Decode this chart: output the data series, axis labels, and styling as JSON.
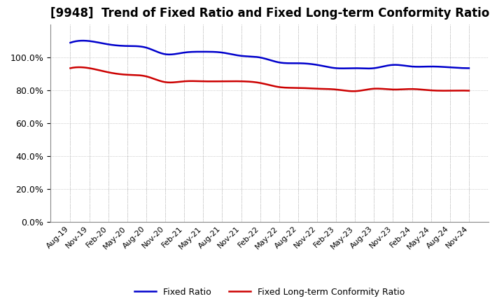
{
  "title": "[9948]  Trend of Fixed Ratio and Fixed Long-term Conformity Ratio",
  "x_labels": [
    "Aug-19",
    "Nov-19",
    "Feb-20",
    "May-20",
    "Aug-20",
    "Nov-20",
    "Feb-21",
    "May-21",
    "Aug-21",
    "Nov-21",
    "Feb-22",
    "May-22",
    "Aug-22",
    "Nov-22",
    "Feb-23",
    "May-23",
    "Aug-23",
    "Nov-23",
    "Feb-24",
    "May-24",
    "Aug-24",
    "Nov-24"
  ],
  "fixed_ratio": [
    1.09,
    1.1,
    1.08,
    1.07,
    1.06,
    1.02,
    1.03,
    1.035,
    1.03,
    1.01,
    1.0,
    0.97,
    0.965,
    0.955,
    0.935,
    0.935,
    0.935,
    0.955,
    0.945,
    0.945,
    0.94,
    0.935
  ],
  "fixed_lt_ratio": [
    0.935,
    0.935,
    0.91,
    0.895,
    0.885,
    0.85,
    0.855,
    0.855,
    0.855,
    0.855,
    0.845,
    0.82,
    0.815,
    0.81,
    0.805,
    0.795,
    0.81,
    0.805,
    0.808,
    0.8,
    0.798,
    0.798
  ],
  "fixed_ratio_color": "#0000cc",
  "fixed_lt_ratio_color": "#cc0000",
  "ylim": [
    0.0,
    1.2
  ],
  "yticks": [
    0.0,
    0.2,
    0.4,
    0.6,
    0.8,
    1.0
  ],
  "background_color": "#ffffff",
  "grid_color": "#aaaaaa",
  "legend_labels": [
    "Fixed Ratio",
    "Fixed Long-term Conformity Ratio"
  ],
  "title_fontsize": 12
}
